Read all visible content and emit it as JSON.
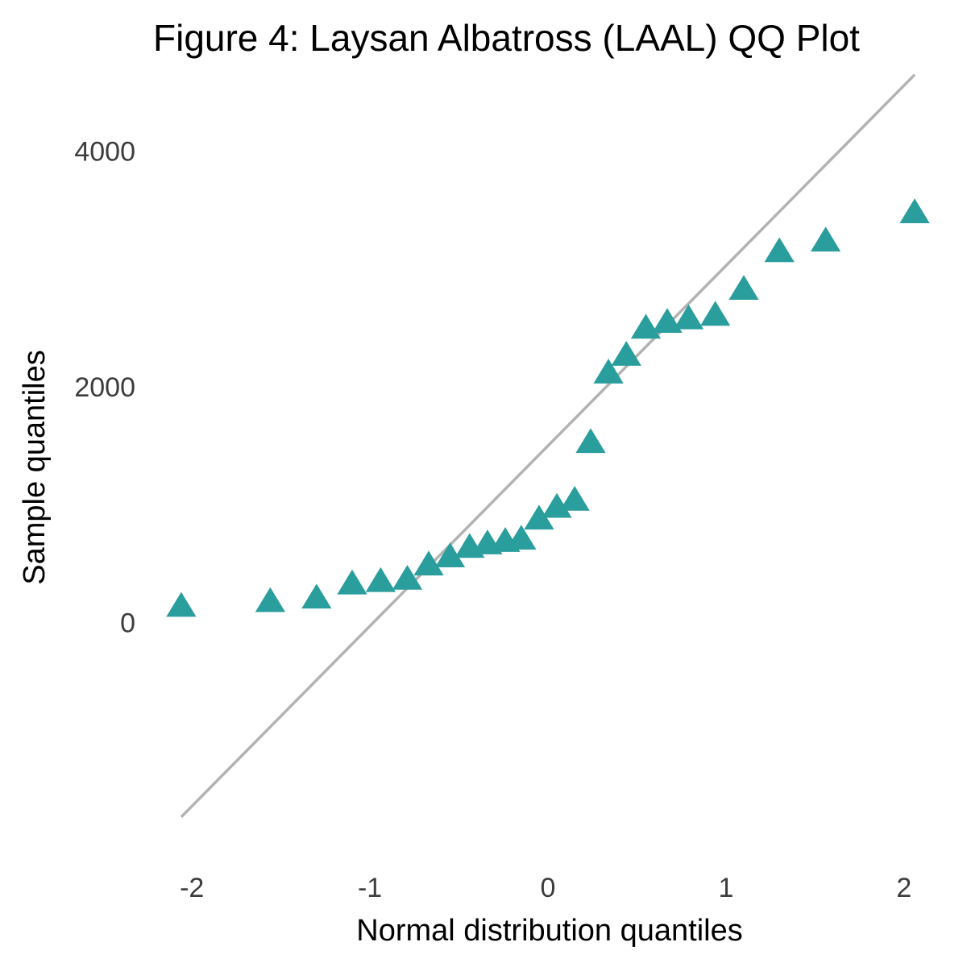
{
  "chart_data": {
    "type": "scatter",
    "title": "Figure 4: Laysan Albatross (LAAL) QQ Plot",
    "xlabel": "Normal distribution quantiles",
    "ylabel": "Sample quantiles",
    "xlim": [
      -2.2,
      2.2
    ],
    "ylim": [
      -2000,
      4600
    ],
    "x_ticks": [
      -2,
      -1,
      0,
      1,
      2
    ],
    "x_tick_labels": [
      "-2",
      "-1",
      "0",
      "1",
      "2"
    ],
    "y_ticks": [
      0,
      2000,
      4000
    ],
    "y_tick_labels": [
      "0",
      "2000",
      "4000"
    ],
    "grid": false,
    "marker": "triangle",
    "point_color": "#2a9d9d",
    "reference_line_color": "#b3b3b3",
    "reference_line": {
      "x": [
        -2.06,
        2.06
      ],
      "y": [
        -1650,
        4650
      ]
    },
    "x": [
      -2.06,
      -1.56,
      -1.3,
      -1.1,
      -0.94,
      -0.79,
      -0.67,
      -0.55,
      -0.44,
      -0.34,
      -0.24,
      -0.15,
      -0.05,
      0.05,
      0.15,
      0.24,
      0.34,
      0.44,
      0.55,
      0.67,
      0.79,
      0.94,
      1.1,
      1.3,
      1.56,
      2.06
    ],
    "y": [
      130,
      170,
      200,
      320,
      340,
      360,
      480,
      550,
      630,
      660,
      680,
      700,
      870,
      970,
      1030,
      1520,
      2110,
      2260,
      2490,
      2540,
      2570,
      2600,
      2820,
      3140,
      3230,
      3470
    ]
  }
}
